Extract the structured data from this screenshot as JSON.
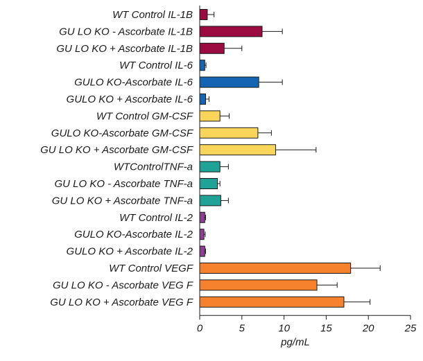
{
  "chart_data": {
    "type": "bar",
    "orientation": "horizontal",
    "xlabel": "pg/mL",
    "xlim": [
      0,
      25
    ],
    "xticks": [
      0,
      5,
      10,
      15,
      20,
      25
    ],
    "xtick_labels": [
      "0",
      "5",
      "10",
      "15",
      "20",
      "25"
    ],
    "grid": false,
    "legend": false,
    "categories": [
      "WT Control IL-1B",
      "GU LO KO - Ascorbate IL-1B",
      "GU LO KO + Ascorbate IL-1B",
      "WT Control IL-6",
      "GULO KO-Ascorbate IL-6",
      "GULO KO + Ascorbate IL-6",
      "WT Control GM-CSF",
      "GULO KO-Ascorbate GM-CSF",
      "GU LO KO + Ascorbate GM-CSF",
      "WTControlTNF-a",
      "GU LO KO - Ascorbate TNF-a",
      "GU LO KO + Ascorbate TNF-a",
      "WT Control IL-2",
      "GULO KO-Ascorbate IL-2",
      "GULO KO + Ascorbate IL-2",
      "WT Control VEGF",
      "GU LO KO - Ascorbate VEG F",
      "GU LO KO + Ascorbate VEG F"
    ],
    "values": [
      0.9,
      7.4,
      2.9,
      0.6,
      7.0,
      0.7,
      2.4,
      6.9,
      9.0,
      2.4,
      2.1,
      2.5,
      0.6,
      0.5,
      0.6,
      17.9,
      13.9,
      17.1
    ],
    "errors": [
      0.8,
      2.4,
      2.1,
      0.15,
      2.8,
      0.4,
      1.1,
      1.6,
      4.8,
      1.0,
      0.3,
      0.9,
      0.1,
      0.15,
      0.1,
      3.5,
      2.4,
      3.1
    ],
    "bar_colors": [
      "#9b0b40",
      "#9b0b40",
      "#9b0b40",
      "#1564b3",
      "#1564b3",
      "#1564b3",
      "#fbd55a",
      "#fbd55a",
      "#fbd55a",
      "#1fa396",
      "#1fa396",
      "#1fa396",
      "#8c3e92",
      "#8c3e92",
      "#8c3e92",
      "#f7822e",
      "#f7822e",
      "#f7822e"
    ]
  }
}
